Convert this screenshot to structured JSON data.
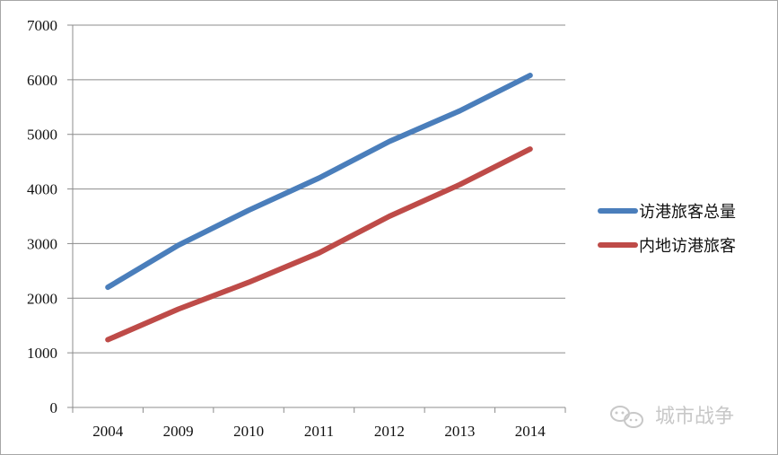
{
  "chart_data": {
    "type": "line",
    "categories": [
      "2004",
      "2009",
      "2010",
      "2011",
      "2012",
      "2013",
      "2014"
    ],
    "series": [
      {
        "name": "访港旅客总量",
        "color": "#4a7ebb",
        "values": [
          2200,
          2970,
          3610,
          4200,
          4870,
          5430,
          6080
        ]
      },
      {
        "name": "内地访港旅客",
        "color": "#be4b48",
        "values": [
          1240,
          1800,
          2290,
          2830,
          3500,
          4080,
          4730
        ]
      }
    ],
    "ylim": [
      0,
      7000
    ],
    "yticks": [
      0,
      1000,
      2000,
      3000,
      4000,
      5000,
      6000,
      7000
    ],
    "grid": true,
    "legend_position": "right",
    "title": "",
    "xlabel": "",
    "ylabel": ""
  },
  "watermark": {
    "icon": "wechat-icon",
    "text": "城市战争"
  }
}
